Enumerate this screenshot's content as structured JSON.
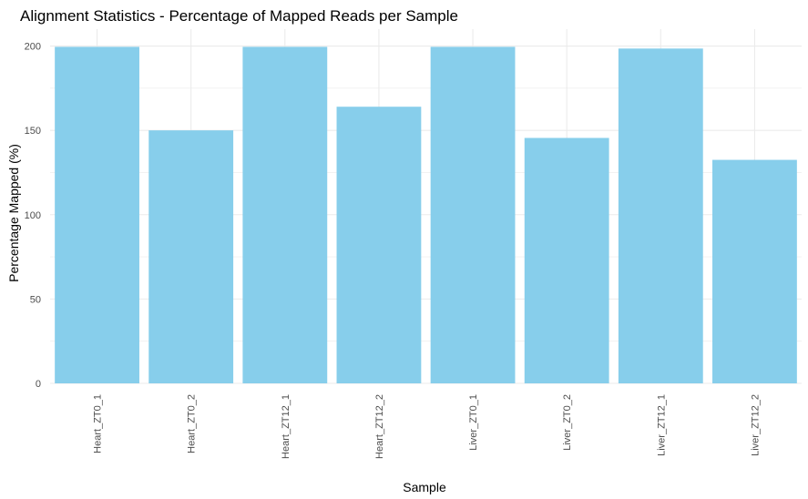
{
  "chart_data": {
    "type": "bar",
    "title": "Alignment Statistics - Percentage of Mapped Reads per Sample",
    "xlabel": "Sample",
    "ylabel": "Percentage Mapped (%)",
    "categories": [
      "Heart_ZT0_1",
      "Heart_ZT0_2",
      "Heart_ZT12_1",
      "Heart_ZT12_2",
      "Liver_ZT0_1",
      "Liver_ZT0_2",
      "Liver_ZT12_1",
      "Liver_ZT12_2"
    ],
    "values": [
      199.5,
      150.0,
      199.5,
      164.0,
      199.5,
      145.5,
      198.5,
      132.5
    ],
    "ylim": [
      0,
      210
    ],
    "yticks": [
      0,
      50,
      100,
      150,
      200
    ],
    "grid": true,
    "bar_color": "#87CEEB",
    "grid_color": "#ebebeb"
  }
}
